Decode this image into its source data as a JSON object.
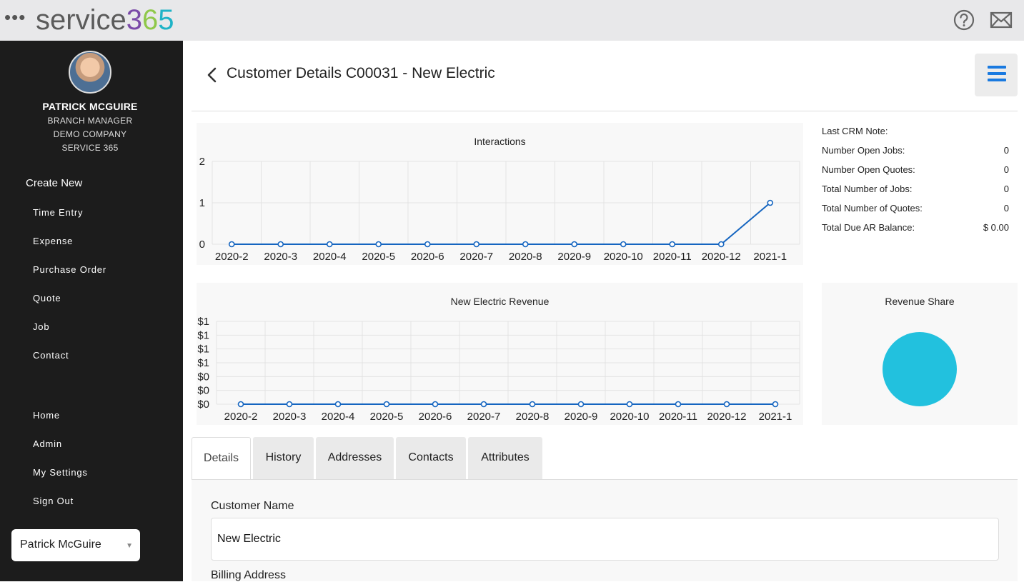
{
  "app": {
    "brand_prefix": "service",
    "brand_d1": "3",
    "brand_d2": "6",
    "brand_d3": "5"
  },
  "header": {
    "title": "Customer Details C00031 - New Electric"
  },
  "user": {
    "name": "PATRICK MCGUIRE",
    "role": "BRANCH MANAGER",
    "company": "DEMO COMPANY",
    "org": "SERVICE 365",
    "select_value": "Patrick McGuire"
  },
  "sidebar": {
    "create_title": "Create New",
    "create_items": [
      "Time Entry",
      "Expense",
      "Purchase Order",
      "Quote",
      "Job",
      "Contact"
    ],
    "nav_items": [
      "Home",
      "Admin",
      "My Settings",
      "Sign Out"
    ]
  },
  "stats": [
    {
      "label": "Last CRM Note:",
      "value": ""
    },
    {
      "label": "Number Open Jobs:",
      "value": "0"
    },
    {
      "label": "Number Open Quotes:",
      "value": "0"
    },
    {
      "label": "Total Number of Jobs:",
      "value": "0"
    },
    {
      "label": "Total Number of Quotes:",
      "value": "0"
    },
    {
      "label": "Total Due AR Balance:",
      "value": "$ 0.00"
    }
  ],
  "tabs": [
    "Details",
    "History",
    "Addresses",
    "Contacts",
    "Attributes"
  ],
  "form": {
    "customer_name_label": "Customer Name",
    "customer_name_value": "New Electric",
    "billing_address_label": "Billing Address"
  },
  "colors": {
    "accent": "#1a7ae0",
    "line": "#1565c0",
    "pie": "#22c1de",
    "sidebar_bg": "#1c1c1c"
  },
  "chart_data": [
    {
      "type": "line",
      "title": "Interactions",
      "categories": [
        "2020-2",
        "2020-3",
        "2020-4",
        "2020-5",
        "2020-6",
        "2020-7",
        "2020-8",
        "2020-9",
        "2020-10",
        "2020-11",
        "2020-12",
        "2021-1"
      ],
      "values": [
        0,
        0,
        0,
        0,
        0,
        0,
        0,
        0,
        0,
        0,
        0,
        1
      ],
      "ylim": [
        0,
        2
      ],
      "yticks": [
        "0",
        "1",
        "2"
      ],
      "grid": true
    },
    {
      "type": "line",
      "title": "New Electric Revenue",
      "categories": [
        "2020-2",
        "2020-3",
        "2020-4",
        "2020-5",
        "2020-6",
        "2020-7",
        "2020-8",
        "2020-9",
        "2020-10",
        "2020-11",
        "2020-12",
        "2021-1"
      ],
      "values": [
        0,
        0,
        0,
        0,
        0,
        0,
        0,
        0,
        0,
        0,
        0,
        0
      ],
      "ylim": [
        0,
        1
      ],
      "yticks": [
        "$0",
        "$0",
        "$0",
        "$1",
        "$1",
        "$1",
        "$1"
      ],
      "grid": true
    },
    {
      "type": "pie",
      "title": "Revenue Share",
      "values": [
        1
      ]
    }
  ]
}
